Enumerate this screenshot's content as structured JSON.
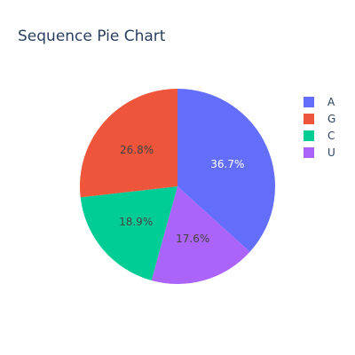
{
  "chart_data": {
    "type": "pie",
    "title": "Sequence Pie Chart",
    "slices": [
      {
        "label": "A",
        "value": 36.7,
        "text": "36.7%",
        "color": "#636efa",
        "text_color": "#ffffff"
      },
      {
        "label": "U",
        "value": 17.6,
        "text": "17.6%",
        "color": "#ab63fa",
        "text_color": "#444444"
      },
      {
        "label": "C",
        "value": 18.9,
        "text": "18.9%",
        "color": "#00cc96",
        "text_color": "#444444"
      },
      {
        "label": "G",
        "value": 26.8,
        "text": "26.8%",
        "color": "#ef553b",
        "text_color": "#444444"
      }
    ],
    "direction": "clockwise",
    "start": "12 o'clock",
    "legend": {
      "position": "top-right",
      "entries": [
        {
          "label": "A",
          "color": "#636efa"
        },
        {
          "label": "G",
          "color": "#ef553b"
        },
        {
          "label": "C",
          "color": "#00cc96"
        },
        {
          "label": "U",
          "color": "#ab63fa"
        }
      ]
    }
  }
}
